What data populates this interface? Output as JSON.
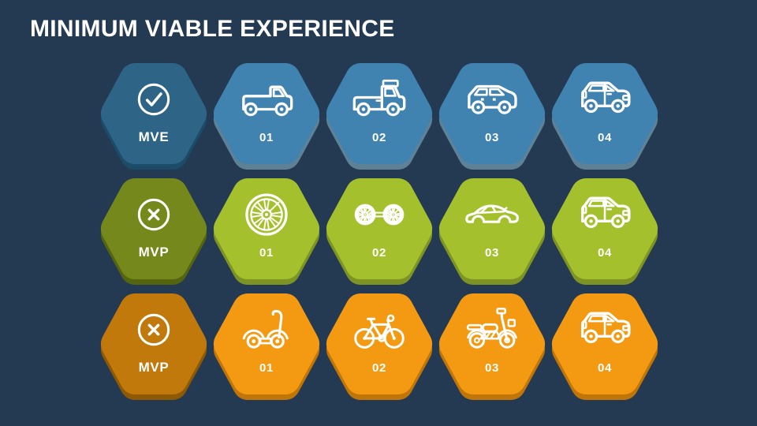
{
  "title": "MINIMUM VIABLE EXPERIENCE",
  "colors": {
    "background": "#233A52",
    "text": "#FFFFFF",
    "icon_color": "#FFFFFF",
    "row1_header": "#2E6486",
    "row1_accent": "#4183B0",
    "row2_header": "#75881C",
    "row2_accent": "#A4C02C",
    "row3_header": "#C1790B",
    "row3_accent": "#F39A12"
  },
  "grid": {
    "rows": [
      {
        "name": "mve-row",
        "header": {
          "label": "MVE",
          "icon": "check-circle-icon"
        },
        "cells": [
          {
            "label": "01",
            "icon": "pickup-truck-icon"
          },
          {
            "label": "02",
            "icon": "pickup-truck-cargo-icon"
          },
          {
            "label": "03",
            "icon": "hatchback-car-icon"
          },
          {
            "label": "04",
            "icon": "suv-car-icon"
          }
        ]
      },
      {
        "name": "mvp-row-1",
        "header": {
          "label": "MVP",
          "icon": "x-circle-icon"
        },
        "cells": [
          {
            "label": "01",
            "icon": "wheel-icon"
          },
          {
            "label": "02",
            "icon": "axle-wheels-icon"
          },
          {
            "label": "03",
            "icon": "sedan-car-icon"
          },
          {
            "label": "04",
            "icon": "suv-car-icon"
          }
        ]
      },
      {
        "name": "mvp-row-2",
        "header": {
          "label": "MVP",
          "icon": "x-circle-icon"
        },
        "cells": [
          {
            "label": "01",
            "icon": "scooter-icon"
          },
          {
            "label": "02",
            "icon": "bicycle-icon"
          },
          {
            "label": "03",
            "icon": "motorcycle-icon"
          },
          {
            "label": "04",
            "icon": "suv-car-icon"
          }
        ]
      }
    ]
  }
}
